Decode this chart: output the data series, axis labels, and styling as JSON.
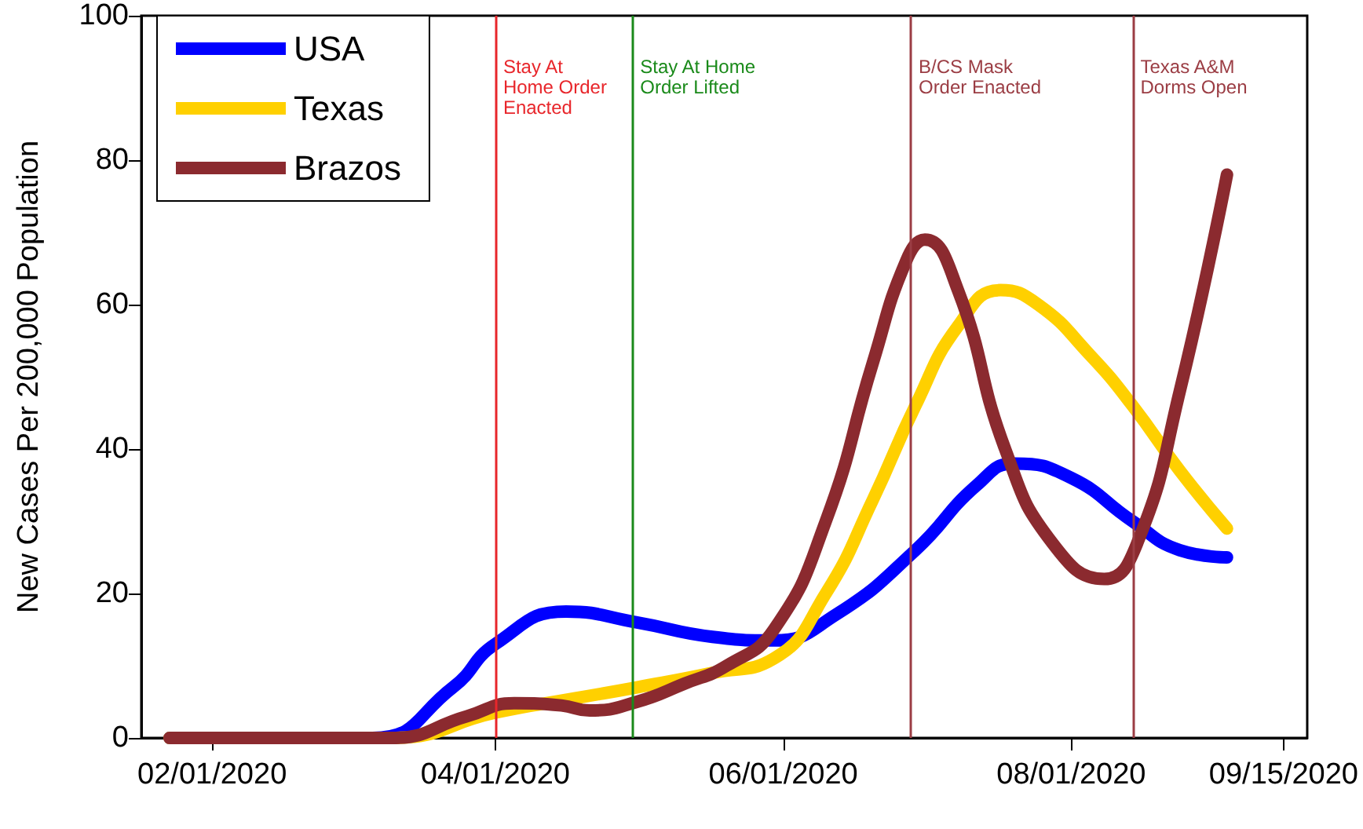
{
  "chart_data": {
    "type": "line",
    "ylabel": "New Cases Per 200,000 Population",
    "xlim": [
      "2020-01-17",
      "2020-09-20"
    ],
    "xticks": [
      {
        "value": "2020-02-01",
        "label": "02/01/2020"
      },
      {
        "value": "2020-04-01",
        "label": "04/01/2020"
      },
      {
        "value": "2020-06-01",
        "label": "06/01/2020"
      },
      {
        "value": "2020-08-01",
        "label": "08/01/2020"
      },
      {
        "value": "2020-09-15",
        "label": "09/15/2020"
      }
    ],
    "ylim": [
      0,
      100
    ],
    "yticks": [
      0,
      20,
      40,
      60,
      80,
      100
    ],
    "series": [
      {
        "name": "USA",
        "color": "#0000ff",
        "x": [
          "2020-01-23",
          "2020-03-06",
          "2020-03-23",
          "2020-04-01",
          "2020-04-16",
          "2020-05-01",
          "2020-05-17",
          "2020-05-30",
          "2020-06-12",
          "2020-06-29",
          "2020-07-12",
          "2020-07-20",
          "2020-08-01",
          "2020-08-14",
          "2020-08-24",
          "2020-09-03"
        ],
        "values": [
          0,
          0,
          7,
          13,
          17.5,
          16,
          14,
          13.5,
          17,
          26,
          35,
          38,
          36,
          30,
          26,
          25
        ]
      },
      {
        "name": "Texas",
        "color": "#ffd000",
        "x": [
          "2020-01-23",
          "2020-03-10",
          "2020-04-01",
          "2020-04-18",
          "2020-05-01",
          "2020-05-17",
          "2020-05-30",
          "2020-06-10",
          "2020-06-20",
          "2020-06-29",
          "2020-07-08",
          "2020-07-17",
          "2020-07-25",
          "2020-08-05",
          "2020-08-14",
          "2020-08-24",
          "2020-09-03"
        ],
        "values": [
          0,
          0,
          3.5,
          5.5,
          7,
          9,
          11,
          20,
          33,
          46,
          57,
          62,
          60,
          53,
          46,
          37,
          29
        ]
      },
      {
        "name": "Brazos",
        "color": "#8b2a2f",
        "x": [
          "2020-01-23",
          "2020-03-10",
          "2020-03-26",
          "2020-04-05",
          "2020-04-15",
          "2020-04-21",
          "2020-05-01",
          "2020-05-11",
          "2020-05-20",
          "2020-05-30",
          "2020-06-10",
          "2020-06-20",
          "2020-06-27",
          "2020-07-01",
          "2020-07-08",
          "2020-07-18",
          "2020-07-28",
          "2020-08-08",
          "2020-08-15",
          "2020-08-24",
          "2020-09-03"
        ],
        "values": [
          0,
          0,
          3,
          4.8,
          4.5,
          3.8,
          5,
          7.5,
          10,
          15,
          30,
          52,
          66,
          69,
          62,
          40,
          27,
          22,
          27,
          48,
          78
        ]
      }
    ],
    "ref_lines": [
      {
        "axis": "x",
        "value": "2020-04-01",
        "label": "Stay At\nHome Order\nEnacted",
        "color": "#e8262b"
      },
      {
        "axis": "x",
        "value": "2020-04-30",
        "label": "Stay At Home\nOrder Lifted",
        "color": "#1a8a1a"
      },
      {
        "axis": "x",
        "value": "2020-06-28",
        "label": "B/CS Mask\nOrder Enacted",
        "color": "#9b3d44"
      },
      {
        "axis": "x",
        "value": "2020-08-14",
        "label": "Texas A&M\nDorms Open",
        "color": "#9b3d44"
      }
    ],
    "legend": "top left",
    "grid": false,
    "marker": "none",
    "line_style": "solid"
  }
}
